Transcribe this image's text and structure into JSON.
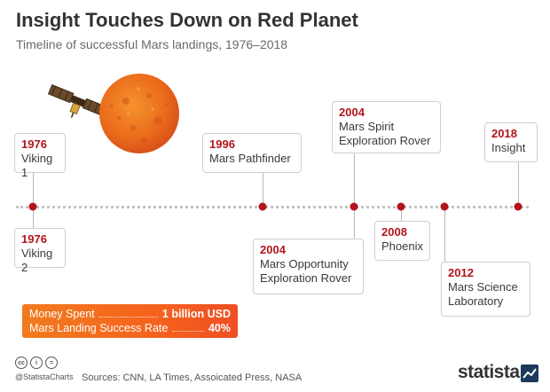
{
  "header": {
    "title": "Insight Touches Down on Red Planet",
    "subtitle": "Timeline of successful Mars landings, 1976–2018"
  },
  "chart_data": {
    "type": "timeline",
    "title": "Insight Touches Down on Red Planet",
    "subtitle": "Timeline of successful Mars landings, 1976–2018",
    "events": [
      {
        "year": "1976",
        "name": "Viking 1",
        "side": "above"
      },
      {
        "year": "1976",
        "name": "Viking 2",
        "side": "below"
      },
      {
        "year": "1996",
        "name": "Mars Pathfinder",
        "side": "above"
      },
      {
        "year": "2004",
        "name": "Mars Opportunity Exploration Rover",
        "side": "below"
      },
      {
        "year": "2004",
        "name": "Mars Spirit Exploration Rover",
        "side": "above"
      },
      {
        "year": "2008",
        "name": "Phoenix",
        "side": "below"
      },
      {
        "year": "2012",
        "name": "Mars Science Laboratory",
        "side": "below"
      },
      {
        "year": "2018",
        "name": "Insight",
        "side": "above"
      }
    ],
    "colors": {
      "accent": "#b3141c",
      "box_start": "#f17b1e",
      "box_end": "#f04e23"
    }
  },
  "stats": {
    "money_label": "Money Spent",
    "money_value": "1 billion USD",
    "success_label": "Mars Landing Success Rate",
    "success_value": "40%"
  },
  "footer": {
    "handle": "@StatistaCharts",
    "sources": "Sources: CNN, LA Times, Assoicated Press, NASA",
    "brand": "statista",
    "license_icons": [
      "cc-icon",
      "by-icon",
      "nd-icon"
    ]
  }
}
